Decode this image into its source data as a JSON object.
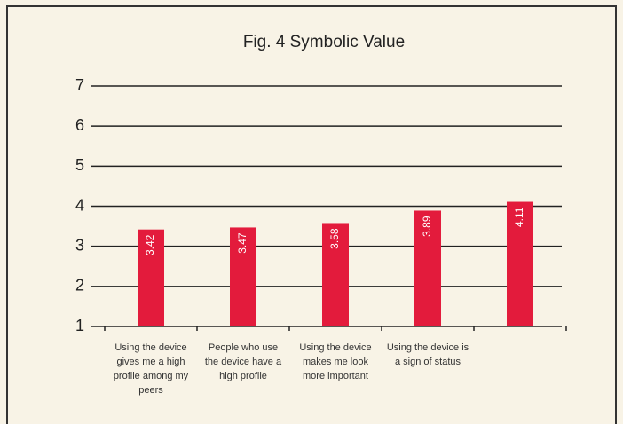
{
  "chart_data": {
    "type": "bar",
    "title": "Fig. 4 Symbolic Value",
    "categories": [
      "Using the device gives me a high profile among my peers",
      "People who use the device have a high profile",
      "Using the device makes me look more important",
      "Using the device is a sign of status",
      null
    ],
    "values": [
      3.42,
      3.47,
      3.58,
      3.89,
      4.11
    ],
    "color": "#e31b3c",
    "ylim": [
      1,
      7
    ],
    "yticks": [
      1,
      2,
      3,
      4,
      5,
      6,
      7
    ],
    "grid": true
  }
}
